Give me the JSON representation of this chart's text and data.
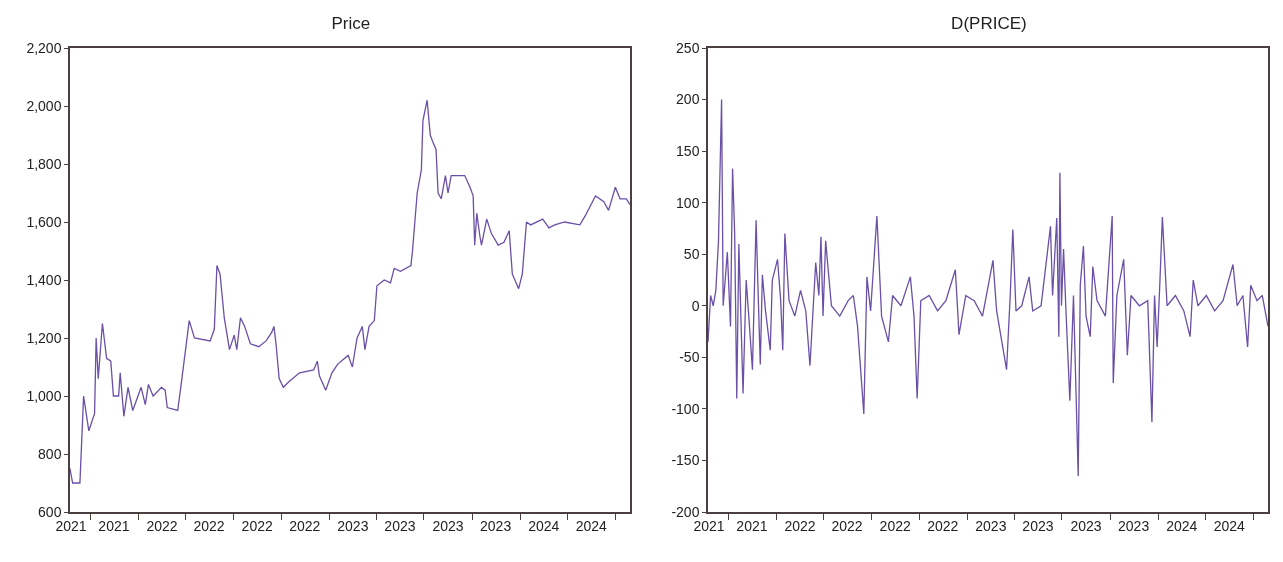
{
  "chart_data": [
    {
      "type": "line",
      "title": "Price",
      "marker": "none",
      "line_style": "solid",
      "xlim": [
        "2021-08-23",
        "2024-07-29"
      ],
      "xticks": [
        {
          "value": "2021-08-25",
          "label": "2021"
        },
        {
          "value": "2021-10-01",
          "label": null
        },
        {
          "value": "2021-11-15",
          "label": "2021"
        },
        {
          "value": "2022-01-01",
          "label": null
        },
        {
          "value": "2022-02-15",
          "label": "2022"
        },
        {
          "value": "2022-04-01",
          "label": null
        },
        {
          "value": "2022-05-16",
          "label": "2022"
        },
        {
          "value": "2022-07-01",
          "label": null
        },
        {
          "value": "2022-08-16",
          "label": "2022"
        },
        {
          "value": "2022-10-01",
          "label": null
        },
        {
          "value": "2022-11-15",
          "label": "2022"
        },
        {
          "value": "2023-01-01",
          "label": null
        },
        {
          "value": "2023-02-15",
          "label": "2023"
        },
        {
          "value": "2023-04-01",
          "label": null
        },
        {
          "value": "2023-05-16",
          "label": "2023"
        },
        {
          "value": "2023-07-01",
          "label": null
        },
        {
          "value": "2023-08-16",
          "label": "2023"
        },
        {
          "value": "2023-10-01",
          "label": null
        },
        {
          "value": "2023-11-15",
          "label": "2023"
        },
        {
          "value": "2024-01-01",
          "label": null
        },
        {
          "value": "2024-02-15",
          "label": "2024"
        },
        {
          "value": "2024-04-01",
          "label": null
        },
        {
          "value": "2024-05-16",
          "label": "2024"
        },
        {
          "value": "2024-07-01",
          "label": null
        }
      ],
      "ylim": [
        600,
        2200
      ],
      "yticks": [
        {
          "value": 600,
          "label": "600"
        },
        {
          "value": 800,
          "label": "800"
        },
        {
          "value": 1000,
          "label": "1,000"
        },
        {
          "value": 1200,
          "label": "1,200"
        },
        {
          "value": 1400,
          "label": "1,400"
        },
        {
          "value": 1600,
          "label": "1,600"
        },
        {
          "value": 1800,
          "label": "1,800"
        },
        {
          "value": 2000,
          "label": "2,000"
        },
        {
          "value": 2200,
          "label": "2,200"
        }
      ],
      "series": [
        {
          "color": "#6a50a7",
          "x": [
            "2021-08-23",
            "2021-08-28",
            "2021-09-11",
            "2021-09-18",
            "2021-09-28",
            "2021-10-09",
            "2021-10-12",
            "2021-10-16",
            "2021-10-24",
            "2021-11-01",
            "2021-11-09",
            "2021-11-14",
            "2021-11-24",
            "2021-11-27",
            "2021-12-04",
            "2021-12-12",
            "2021-12-21",
            "2022-01-06",
            "2022-01-14",
            "2022-01-20",
            "2022-01-29",
            "2022-02-14",
            "2022-02-21",
            "2022-02-25",
            "2022-03-17",
            "2022-03-25",
            "2022-04-08",
            "2022-04-18",
            "2022-05-18",
            "2022-05-26",
            "2022-05-31",
            "2022-06-06",
            "2022-06-14",
            "2022-06-24",
            "2022-07-03",
            "2022-07-08",
            "2022-07-15",
            "2022-07-23",
            "2022-08-03",
            "2022-08-19",
            "2022-09-02",
            "2022-09-13",
            "2022-09-17",
            "2022-09-21",
            "2022-09-27",
            "2022-10-05",
            "2022-10-16",
            "2022-11-05",
            "2022-12-02",
            "2022-12-09",
            "2022-12-13",
            "2022-12-25",
            "2023-01-06",
            "2023-01-17",
            "2023-02-06",
            "2023-02-14",
            "2023-02-23",
            "2023-03-05",
            "2023-03-10",
            "2023-03-18",
            "2023-03-28",
            "2023-04-02",
            "2023-04-16",
            "2023-04-28",
            "2023-05-05",
            "2023-05-17",
            "2023-06-06",
            "2023-06-09",
            "2023-06-18",
            "2023-06-26",
            "2023-06-29",
            "2023-07-07",
            "2023-07-13",
            "2023-07-17",
            "2023-07-24",
            "2023-07-28",
            "2023-08-03",
            "2023-08-11",
            "2023-08-16",
            "2023-08-22",
            "2023-09-03",
            "2023-09-17",
            "2023-09-27",
            "2023-10-03",
            "2023-10-06",
            "2023-10-10",
            "2023-10-16",
            "2023-10-19",
            "2023-10-29",
            "2023-11-07",
            "2023-11-20",
            "2023-12-01",
            "2023-12-11",
            "2023-12-17",
            "2023-12-29",
            "2024-01-05",
            "2024-01-13",
            "2024-01-21",
            "2024-02-13",
            "2024-02-25",
            "2024-03-07",
            "2024-03-26",
            "2024-04-24",
            "2024-05-04",
            "2024-05-24",
            "2024-06-09",
            "2024-06-18",
            "2024-07-01",
            "2024-07-10",
            "2024-07-22",
            "2024-07-29"
          ],
          "values": [
            750,
            700,
            700,
            1000,
            880,
            940,
            1200,
            1060,
            1250,
            1130,
            1120,
            1000,
            1000,
            1080,
            930,
            1030,
            950,
            1030,
            970,
            1040,
            1000,
            1030,
            1020,
            960,
            950,
            1060,
            1260,
            1200,
            1190,
            1230,
            1450,
            1420,
            1270,
            1160,
            1210,
            1160,
            1270,
            1240,
            1180,
            1170,
            1190,
            1220,
            1240,
            1180,
            1060,
            1030,
            1050,
            1080,
            1090,
            1120,
            1070,
            1020,
            1080,
            1110,
            1140,
            1100,
            1200,
            1240,
            1160,
            1240,
            1260,
            1380,
            1400,
            1390,
            1440,
            1430,
            1450,
            1500,
            1700,
            1780,
            1950,
            2020,
            1900,
            1880,
            1850,
            1700,
            1680,
            1760,
            1700,
            1760,
            1760,
            1760,
            1720,
            1690,
            1520,
            1630,
            1550,
            1520,
            1610,
            1560,
            1520,
            1530,
            1570,
            1420,
            1370,
            1420,
            1600,
            1590,
            1610,
            1580,
            1590,
            1600,
            1590,
            1620,
            1690,
            1670,
            1640,
            1720,
            1680,
            1680,
            1660
          ]
        }
      ]
    },
    {
      "type": "line",
      "title": "D(PRICE)",
      "marker": "none",
      "line_style": "solid",
      "xlim": [
        "2021-08-23",
        "2024-07-29"
      ],
      "xticks": [
        {
          "value": "2021-08-25",
          "label": "2021"
        },
        {
          "value": "2021-10-01",
          "label": null
        },
        {
          "value": "2021-11-15",
          "label": "2021"
        },
        {
          "value": "2022-01-01",
          "label": null
        },
        {
          "value": "2022-02-15",
          "label": "2022"
        },
        {
          "value": "2022-04-01",
          "label": null
        },
        {
          "value": "2022-05-16",
          "label": "2022"
        },
        {
          "value": "2022-07-01",
          "label": null
        },
        {
          "value": "2022-08-16",
          "label": "2022"
        },
        {
          "value": "2022-10-01",
          "label": null
        },
        {
          "value": "2022-11-15",
          "label": "2022"
        },
        {
          "value": "2023-01-01",
          "label": null
        },
        {
          "value": "2023-02-15",
          "label": "2023"
        },
        {
          "value": "2023-04-01",
          "label": null
        },
        {
          "value": "2023-05-16",
          "label": "2023"
        },
        {
          "value": "2023-07-01",
          "label": null
        },
        {
          "value": "2023-08-16",
          "label": "2023"
        },
        {
          "value": "2023-10-01",
          "label": null
        },
        {
          "value": "2023-11-15",
          "label": "2023"
        },
        {
          "value": "2024-01-01",
          "label": null
        },
        {
          "value": "2024-02-15",
          "label": "2024"
        },
        {
          "value": "2024-04-01",
          "label": null
        },
        {
          "value": "2024-05-16",
          "label": "2024"
        },
        {
          "value": "2024-07-01",
          "label": null
        }
      ],
      "ylim": [
        -200,
        250
      ],
      "yticks": [
        -200,
        -150,
        -100,
        -50,
        0,
        50,
        100,
        150,
        200,
        250
      ],
      "series": [
        {
          "color": "#6a50a7",
          "x": [
            "2021-08-23",
            "2021-08-28",
            "2021-09-02",
            "2021-09-07",
            "2021-09-12",
            "2021-09-18",
            "2021-09-21",
            "2021-09-29",
            "2021-10-05",
            "2021-10-09",
            "2021-10-13",
            "2021-10-17",
            "2021-10-21",
            "2021-10-29",
            "2021-11-04",
            "2021-11-09",
            "2021-11-16",
            "2021-11-23",
            "2021-11-27",
            "2021-12-01",
            "2021-12-05",
            "2021-12-11",
            "2021-12-20",
            "2021-12-24",
            "2022-01-03",
            "2022-01-09",
            "2022-01-13",
            "2022-01-17",
            "2022-01-25",
            "2022-02-05",
            "2022-02-16",
            "2022-02-26",
            "2022-03-06",
            "2022-03-17",
            "2022-03-23",
            "2022-03-27",
            "2022-03-31",
            "2022-04-05",
            "2022-04-16",
            "2022-05-02",
            "2022-05-18",
            "2022-05-28",
            "2022-06-05",
            "2022-06-17",
            "2022-06-23",
            "2022-06-30",
            "2022-07-12",
            "2022-07-21",
            "2022-08-03",
            "2022-08-11",
            "2022-08-27",
            "2022-09-14",
            "2022-09-21",
            "2022-09-27",
            "2022-10-04",
            "2022-10-20",
            "2022-11-05",
            "2022-11-21",
            "2022-12-09",
            "2022-12-13",
            "2022-12-16",
            "2022-12-29",
            "2023-01-14",
            "2023-01-30",
            "2023-02-19",
            "2023-02-26",
            "2023-03-17",
            "2023-03-24",
            "2023-03-29",
            "2023-04-04",
            "2023-04-15",
            "2023-04-29",
            "2023-05-06",
            "2023-05-22",
            "2023-06-09",
            "2023-06-13",
            "2023-06-21",
            "2023-06-25",
            "2023-06-27",
            "2023-06-30",
            "2023-07-04",
            "2023-07-09",
            "2023-07-16",
            "2023-07-23",
            "2023-08-01",
            "2023-08-05",
            "2023-08-11",
            "2023-08-16",
            "2023-08-24",
            "2023-08-29",
            "2023-09-06",
            "2023-09-22",
            "2023-10-05",
            "2023-10-07",
            "2023-10-14",
            "2023-10-27",
            "2023-11-03",
            "2023-11-10",
            "2023-11-26",
            "2023-12-12",
            "2023-12-20",
            "2023-12-25",
            "2023-12-30",
            "2024-01-04",
            "2024-01-09",
            "2024-01-18",
            "2024-02-03",
            "2024-02-19",
            "2024-03-02",
            "2024-03-08",
            "2024-03-17",
            "2024-04-02",
            "2024-04-18",
            "2024-05-04",
            "2024-05-23",
            "2024-05-31",
            "2024-06-11",
            "2024-06-20",
            "2024-06-26",
            "2024-07-08",
            "2024-07-18",
            "2024-07-29"
          ],
          "values": [
            -35,
            10,
            0,
            15,
            62,
            200,
            0,
            52,
            -20,
            133,
            70,
            -90,
            60,
            -85,
            25,
            -10,
            -62,
            83,
            10,
            -57,
            30,
            -5,
            -43,
            25,
            45,
            5,
            -43,
            70,
            5,
            -10,
            15,
            -5,
            -58,
            42,
            10,
            67,
            -10,
            63,
            0,
            -10,
            5,
            10,
            -20,
            -105,
            28,
            -5,
            87,
            -10,
            -35,
            10,
            0,
            28,
            -10,
            -90,
            5,
            10,
            -5,
            5,
            35,
            0,
            -28,
            10,
            5,
            -10,
            44,
            -5,
            -62,
            10,
            74,
            -5,
            0,
            28,
            -5,
            0,
            77,
            10,
            85,
            -30,
            129,
            0,
            55,
            -10,
            -92,
            10,
            -165,
            20,
            58,
            -10,
            -30,
            38,
            5,
            -10,
            87,
            -75,
            10,
            45,
            -48,
            10,
            0,
            5,
            -113,
            10,
            -40,
            20,
            86,
            0,
            10,
            -5,
            -30,
            25,
            0,
            10,
            -5,
            5,
            40,
            0,
            10,
            -40,
            20,
            5,
            10,
            -20
          ]
        }
      ]
    }
  ]
}
